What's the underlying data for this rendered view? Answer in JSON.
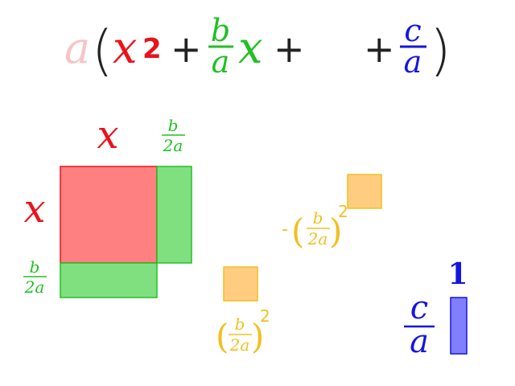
{
  "colors": {
    "red": "#e8141c",
    "red_fill": "#ff8080",
    "green": "#22c022",
    "green_fill": "#80e080",
    "blue": "#1515e0",
    "blue_fill": "#8080ff",
    "orange": "#f0c020",
    "orange_fill": "#ffcc80",
    "faded_pink": "#f6c5c5",
    "black": "#222222"
  },
  "equation": {
    "a": "a",
    "open_paren": "(",
    "x_sq_base": "x",
    "x_sq_exp": "2",
    "plus1": "+",
    "b_num": "b",
    "a_den": "a",
    "x_term": "x",
    "plus2": "+",
    "plus3": "+",
    "c_num": "c",
    "a_den2": "a",
    "close_paren": ")"
  },
  "diagram": {
    "top_x_label": "x",
    "side_x_label": "x",
    "top_frac": {
      "num": "b",
      "den": "2a"
    },
    "side_frac": {
      "num": "b",
      "den": "2a"
    },
    "neg_sign": "-",
    "neg_frac": {
      "num": "b",
      "den": "2a"
    },
    "neg_exp": "2",
    "pos_frac": {
      "num": "b",
      "den": "2a"
    },
    "pos_exp": "2",
    "c_frac": {
      "num": "c",
      "den": "a"
    },
    "one_label": "1"
  }
}
